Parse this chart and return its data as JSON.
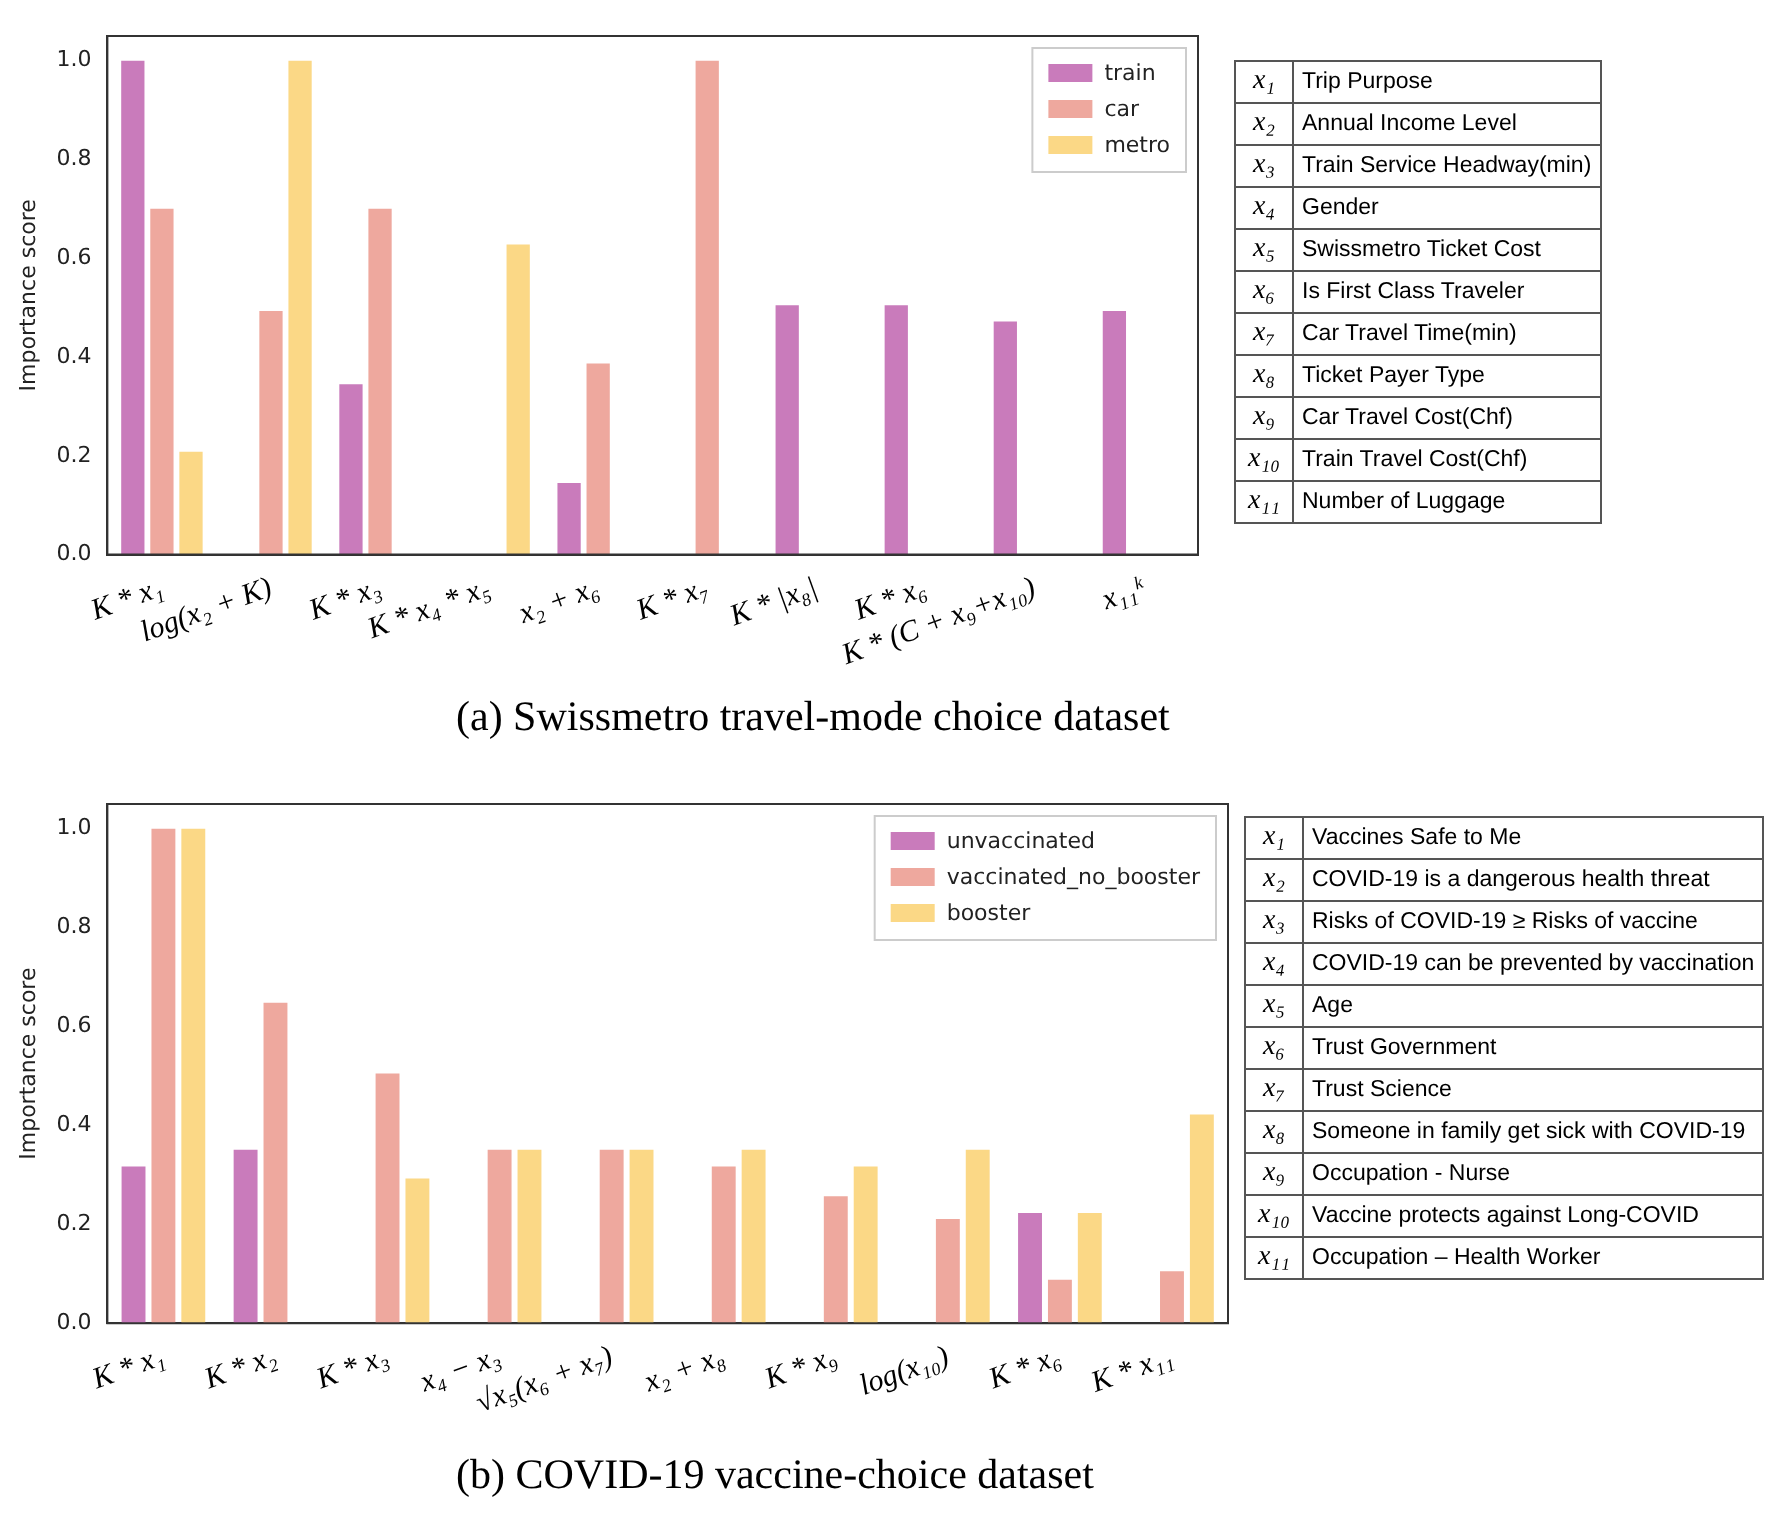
{
  "chart_data": [
    {
      "type": "bar",
      "ylabel": "Importance score",
      "categories": [
        "K * x₁",
        "log(x₂ + K)",
        "K * x₃",
        "K * x₄ * x₅",
        "x₂ + x₆",
        "K * x₇",
        "K * |x₈|",
        "K * x₆",
        "K * (C + x₉+x₁₀)",
        "x₁₁ᵏ"
      ],
      "series": [
        {
          "name": "train",
          "color": "#c97bbb",
          "values": [
            1.0,
            0,
            0.345,
            0,
            0.145,
            0,
            0.505,
            0.505,
            0.472,
            0.493
          ]
        },
        {
          "name": "car",
          "color": "#eea89e",
          "values": [
            0.7,
            0.493,
            0.7,
            0,
            0.387,
            1.0,
            0,
            0,
            0,
            0
          ]
        },
        {
          "name": "metro",
          "color": "#fbd886",
          "values": [
            0.208,
            1.0,
            0,
            0.628,
            0,
            0,
            0,
            0,
            0,
            0
          ]
        }
      ],
      "ylim": [
        0,
        1.05
      ],
      "yticks": [
        {
          "value": 0,
          "label": "0.0"
        },
        {
          "value": 0.2,
          "label": "0.2"
        },
        {
          "value": 0.4,
          "label": "0.4"
        },
        {
          "value": 0.6,
          "label": "0.6"
        },
        {
          "value": 0.8,
          "label": "0.8"
        },
        {
          "value": 1.0,
          "label": "1.0"
        }
      ],
      "grid": false,
      "legend": "top right",
      "annotations": [
        "(a) Swissmetro travel-mode choice dataset"
      ]
    },
    {
      "type": "other",
      "annotations": [
        "x₁",
        "Trip Purpose",
        "x₂",
        "Annual Income Level",
        "x₃",
        "Train Service Headway(min)",
        "x₄",
        "Gender",
        "x₅",
        "Swissmetro Ticket Cost",
        "x₆",
        "Is First Class Traveler",
        "x₇",
        "Car Travel Time(min)",
        "x₈",
        "Ticket Payer Type",
        "x₉",
        "Car Travel Cost(Chf)",
        "x₁₀",
        "Train Travel Cost(Chf)",
        "x₁₁",
        "Number of Luggage"
      ]
    },
    {
      "type": "bar",
      "ylabel": "Importance score",
      "categories": [
        "K * x₁",
        "K * x₂",
        "K * x₃",
        "x₄ − x₃",
        "√x₅(x₆ + x₇)",
        "x₂ + x₈",
        "K * x₉",
        "log(x₁₀)",
        "K * x₆",
        "K * x₁₁"
      ],
      "series": [
        {
          "name": "unvaccinated",
          "color": "#c97bbb",
          "values": [
            0.317,
            0.351,
            0,
            0,
            0,
            0,
            0,
            0,
            0.223,
            0
          ]
        },
        {
          "name": "vaccinated_no_booster",
          "color": "#eea89e",
          "values": [
            1.0,
            0.648,
            0.505,
            0.351,
            0.351,
            0.317,
            0.257,
            0.211,
            0.088,
            0.105
          ]
        },
        {
          "name": "booster",
          "color": "#fbd886",
          "values": [
            1.0,
            0,
            0.293,
            0.351,
            0.351,
            0.351,
            0.317,
            0.351,
            0.223,
            0.422
          ]
        }
      ],
      "ylim": [
        0,
        1.05
      ],
      "yticks": [
        {
          "value": 0,
          "label": "0.0"
        },
        {
          "value": 0.2,
          "label": "0.2"
        },
        {
          "value": 0.4,
          "label": "0.4"
        },
        {
          "value": 0.6,
          "label": "0.6"
        },
        {
          "value": 0.8,
          "label": "0.8"
        },
        {
          "value": 1.0,
          "label": "1.0"
        }
      ],
      "grid": false,
      "legend": "top right",
      "annotations": [
        "(b) COVID-19 vaccine-choice dataset"
      ]
    },
    {
      "type": "other",
      "annotations": [
        "x₁",
        "Vaccines Safe to Me",
        "x₂",
        "COVID-19 is a dangerous health threat",
        "x₃",
        "Risks of COVID-19 ≥ Risks of vaccine",
        "x₄",
        "COVID-19 can be prevented by vaccination",
        "x₅",
        "Age",
        "x₆",
        "Trust Government",
        "x₇",
        "Trust Science",
        "x₈",
        "Someone in family get sick with COVID-19",
        "x₉",
        "Occupation - Nurse",
        "x₁₀",
        "Vaccine protects against Long-COVID",
        "x₁₁",
        "Occupation – Health Worker"
      ]
    }
  ]
}
